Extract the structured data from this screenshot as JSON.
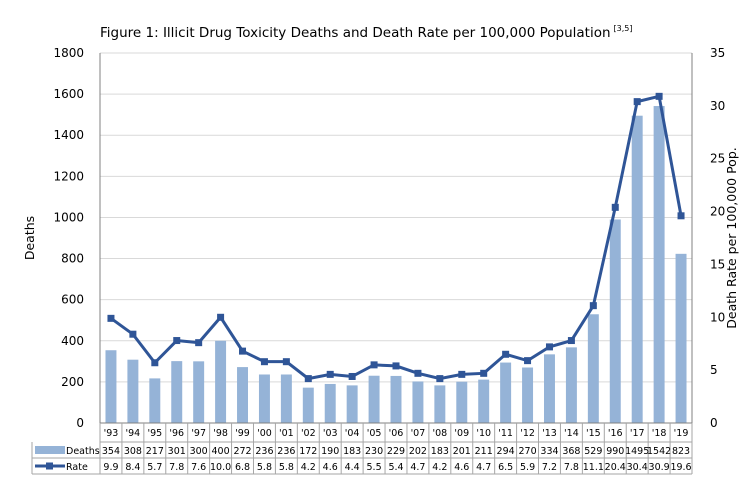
{
  "chart_data": {
    "type": "bar+line",
    "title": "Figure 1: Illicit Drug Toxicity Deaths and Death Rate per 100,000 Population",
    "title_superscript": "[3,5]",
    "categories": [
      "'93",
      "'94",
      "'95",
      "'96",
      "'97",
      "'98",
      "'99",
      "'00",
      "'01",
      "'02",
      "'03",
      "'04",
      "'05",
      "'06",
      "'07",
      "'08",
      "'09",
      "'10",
      "'11",
      "'12",
      "'13",
      "'14",
      "'15",
      "'16",
      "'17",
      "'18",
      "'19"
    ],
    "series": [
      {
        "name": "Deaths",
        "type": "bar",
        "axis": "left",
        "color": "#95b3d7",
        "values": [
          354,
          308,
          217,
          301,
          300,
          400,
          272,
          236,
          236,
          172,
          190,
          183,
          230,
          229,
          202,
          183,
          201,
          211,
          294,
          270,
          334,
          368,
          529,
          990,
          1495,
          1542,
          823
        ]
      },
      {
        "name": "Rate",
        "type": "line",
        "axis": "right",
        "color": "#2f5597",
        "values": [
          9.9,
          8.4,
          5.7,
          7.8,
          7.6,
          10.0,
          6.8,
          5.8,
          5.8,
          4.2,
          4.6,
          4.4,
          5.5,
          5.4,
          4.7,
          4.2,
          4.6,
          4.7,
          6.5,
          5.9,
          7.2,
          7.8,
          11.1,
          20.4,
          30.4,
          30.9,
          19.6
        ]
      }
    ],
    "ylabel": "Deaths",
    "ylabel_right": "Death Rate per 100,000 Pop.",
    "ylim": [
      0,
      1800
    ],
    "ylim_right": [
      0,
      35
    ],
    "yticks": [
      0,
      200,
      400,
      600,
      800,
      1000,
      1200,
      1400,
      1600,
      1800
    ],
    "yticks_right": [
      0,
      5,
      10,
      15,
      20,
      25,
      30,
      35
    ],
    "grid": true,
    "legend": "data-table"
  }
}
